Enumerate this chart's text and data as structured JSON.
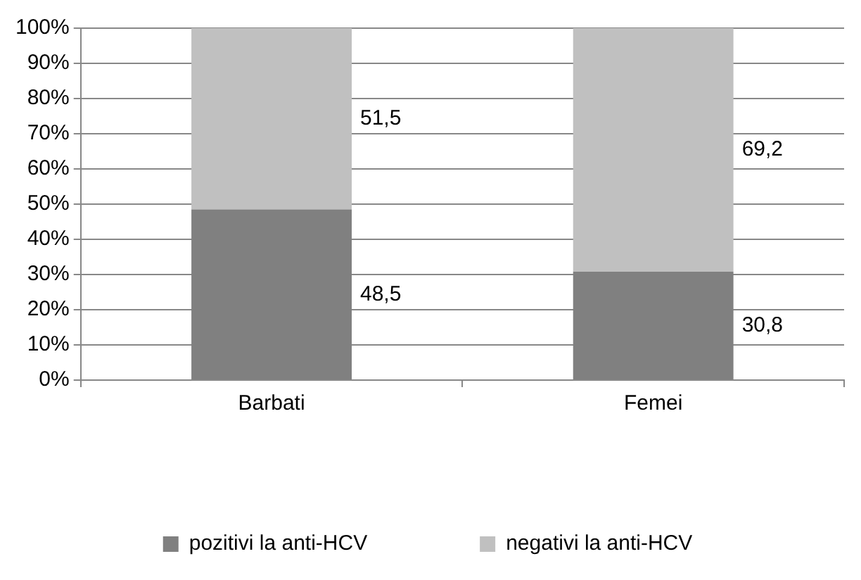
{
  "chart_data": {
    "type": "bar",
    "stacked": true,
    "categories": [
      "Barbati",
      "Femei"
    ],
    "series": [
      {
        "name": "pozitivi la anti-HCV",
        "color": "#808080",
        "values": [
          48.5,
          30.8
        ]
      },
      {
        "name": "negativi la anti-HCV",
        "color": "#c0c0c0",
        "values": [
          51.5,
          69.2
        ]
      }
    ],
    "ylim": [
      0,
      100
    ],
    "yticks": [
      {
        "value": 0,
        "label": "0%"
      },
      {
        "value": 10,
        "label": "10%"
      },
      {
        "value": 20,
        "label": "20%"
      },
      {
        "value": 30,
        "label": "30%"
      },
      {
        "value": 40,
        "label": "40%"
      },
      {
        "value": 50,
        "label": "50%"
      },
      {
        "value": 60,
        "label": "60%"
      },
      {
        "value": 70,
        "label": "70%"
      },
      {
        "value": 80,
        "label": "80%"
      },
      {
        "value": 90,
        "label": "90%"
      },
      {
        "value": 100,
        "label": "100%"
      }
    ],
    "value_labels": [
      [
        "48,5",
        "30,8"
      ],
      [
        "51,5",
        "69,2"
      ]
    ],
    "grid": "y",
    "legend": "bottom"
  }
}
